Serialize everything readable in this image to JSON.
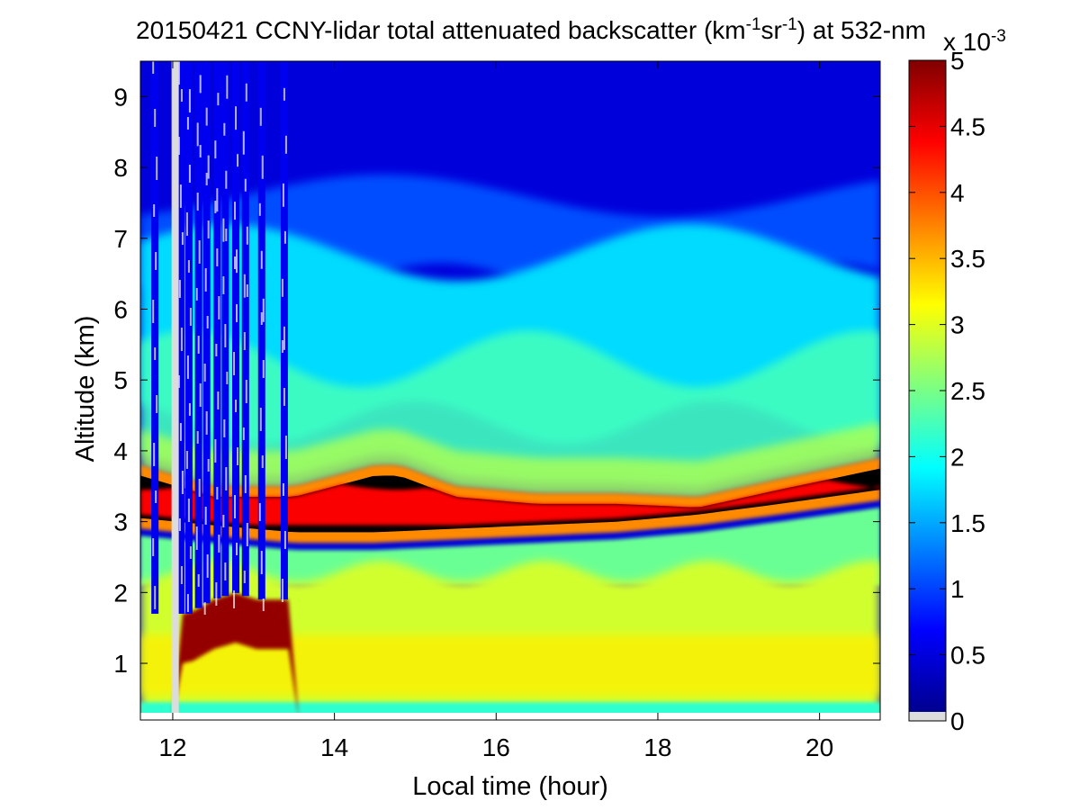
{
  "chart_data": {
    "type": "heatmap",
    "title": {
      "prefix": "20150421 CCNY-lidar total attenuated backscatter (km",
      "sup1": "-1",
      "mid": "sr",
      "sup2": "-1",
      "suffix": ") at 532-nm"
    },
    "xlabel": "Local time (hour)",
    "ylabel": "Altitude (km)",
    "xlim": [
      11.6,
      20.75
    ],
    "ylim": [
      0.2,
      9.5
    ],
    "xticks": [
      12,
      14,
      16,
      18,
      20
    ],
    "yticks": [
      1,
      2,
      3,
      4,
      5,
      6,
      7,
      8,
      9
    ],
    "colorbar": {
      "min": 0,
      "max": 5,
      "ticks": [
        "0",
        "0.5",
        "1",
        "1.5",
        "2",
        "2.5",
        "3",
        "3.5",
        "4",
        "4.5",
        "5"
      ],
      "exponent_base": "x 10",
      "exponent_power": "-3",
      "colormap": "jet"
    },
    "data_gap_time": 12.03,
    "aerosol_layer_top_km": [
      [
        11.6,
        3.8
      ],
      [
        12.5,
        3.5
      ],
      [
        13.5,
        3.5
      ],
      [
        14.5,
        3.8
      ],
      [
        14.8,
        3.8
      ],
      [
        15.5,
        3.5
      ],
      [
        16.5,
        3.4
      ],
      [
        17.5,
        3.4
      ],
      [
        18.5,
        3.35
      ],
      [
        19.5,
        3.6
      ],
      [
        20.75,
        3.9
      ]
    ],
    "aerosol_layer_bottom_km": [
      [
        11.6,
        2.9
      ],
      [
        12.5,
        2.8
      ],
      [
        13.5,
        2.7
      ],
      [
        14.5,
        2.7
      ],
      [
        15.5,
        2.75
      ],
      [
        16.5,
        2.8
      ],
      [
        17.5,
        2.85
      ],
      [
        18.5,
        2.95
      ],
      [
        19.5,
        3.1
      ],
      [
        20.75,
        3.3
      ]
    ],
    "cloud_base_km": [
      [
        12.2,
        1.7
      ],
      [
        12.5,
        1.9
      ],
      [
        12.8,
        2.0
      ],
      [
        13.0,
        1.9
      ],
      [
        13.45,
        1.9
      ]
    ]
  }
}
